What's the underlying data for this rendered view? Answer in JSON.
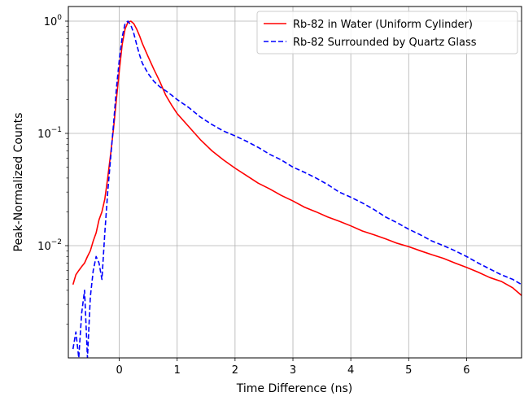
{
  "chart_data": {
    "type": "line",
    "title": "",
    "xlabel": "Time Difference (ns)",
    "ylabel": "Peak-Normalized Counts",
    "yscale": "log",
    "xlim": [
      -0.88,
      6.95
    ],
    "ylim": [
      0.001,
      1.35
    ],
    "xticks": [
      0,
      1,
      2,
      3,
      4,
      5,
      6
    ],
    "xtick_labels": [
      "0",
      "1",
      "2",
      "3",
      "4",
      "5",
      "6"
    ],
    "yticks": [
      0.01,
      0.1,
      1
    ],
    "ytick_labels": [
      {
        "base": "10",
        "exp": "−2"
      },
      {
        "base": "10",
        "exp": "−1"
      },
      {
        "base": "10",
        "exp": "0"
      }
    ],
    "grid": true,
    "legend_position": "top-right",
    "series": [
      {
        "name": "Rb-82 in Water (Uniform Cylinder)",
        "color": "#ff0000",
        "linestyle": "solid",
        "x": [
          -0.8,
          -0.75,
          -0.7,
          -0.65,
          -0.6,
          -0.55,
          -0.5,
          -0.45,
          -0.4,
          -0.35,
          -0.3,
          -0.25,
          -0.2,
          -0.15,
          -0.1,
          -0.05,
          0.0,
          0.05,
          0.1,
          0.15,
          0.2,
          0.25,
          0.3,
          0.35,
          0.4,
          0.5,
          0.6,
          0.7,
          0.8,
          0.9,
          1.0,
          1.2,
          1.4,
          1.6,
          1.8,
          2.0,
          2.2,
          2.4,
          2.6,
          2.8,
          3.0,
          3.2,
          3.4,
          3.6,
          3.8,
          4.0,
          4.2,
          4.4,
          4.6,
          4.8,
          5.0,
          5.2,
          5.4,
          5.6,
          5.8,
          6.0,
          6.2,
          6.4,
          6.6,
          6.8,
          6.95
        ],
        "y": [
          0.0045,
          0.0055,
          0.006,
          0.0065,
          0.007,
          0.008,
          0.009,
          0.011,
          0.013,
          0.017,
          0.02,
          0.026,
          0.04,
          0.065,
          0.11,
          0.2,
          0.36,
          0.62,
          0.85,
          0.98,
          1.0,
          0.95,
          0.85,
          0.74,
          0.63,
          0.48,
          0.37,
          0.29,
          0.22,
          0.18,
          0.15,
          0.115,
          0.088,
          0.07,
          0.058,
          0.049,
          0.042,
          0.036,
          0.032,
          0.028,
          0.025,
          0.022,
          0.02,
          0.018,
          0.0165,
          0.015,
          0.0135,
          0.0125,
          0.0115,
          0.0105,
          0.0098,
          0.009,
          0.0083,
          0.0077,
          0.007,
          0.0064,
          0.0058,
          0.0052,
          0.0048,
          0.0042,
          0.0036
        ]
      },
      {
        "name": "Rb-82 Surrounded by Quartz Glass",
        "color": "#0000ff",
        "linestyle": "dashed",
        "x": [
          -0.8,
          -0.75,
          -0.7,
          -0.65,
          -0.6,
          -0.55,
          -0.5,
          -0.45,
          -0.4,
          -0.35,
          -0.3,
          -0.25,
          -0.2,
          -0.15,
          -0.1,
          -0.05,
          0.0,
          0.05,
          0.1,
          0.15,
          0.2,
          0.25,
          0.3,
          0.35,
          0.4,
          0.5,
          0.6,
          0.7,
          0.8,
          0.9,
          1.0,
          1.2,
          1.4,
          1.6,
          1.8,
          2.0,
          2.2,
          2.4,
          2.6,
          2.8,
          3.0,
          3.2,
          3.4,
          3.6,
          3.8,
          4.0,
          4.2,
          4.4,
          4.6,
          4.8,
          5.0,
          5.2,
          5.4,
          5.6,
          5.8,
          6.0,
          6.2,
          6.4,
          6.6,
          6.8,
          6.95
        ],
        "y": [
          0.0012,
          0.0017,
          0.001,
          0.0025,
          0.004,
          0.001,
          0.0035,
          0.006,
          0.008,
          0.007,
          0.005,
          0.013,
          0.03,
          0.06,
          0.12,
          0.25,
          0.45,
          0.72,
          0.95,
          1.0,
          0.92,
          0.78,
          0.62,
          0.5,
          0.42,
          0.34,
          0.29,
          0.26,
          0.24,
          0.22,
          0.2,
          0.17,
          0.14,
          0.12,
          0.105,
          0.095,
          0.085,
          0.075,
          0.065,
          0.058,
          0.05,
          0.045,
          0.04,
          0.035,
          0.03,
          0.027,
          0.024,
          0.021,
          0.018,
          0.016,
          0.014,
          0.0125,
          0.011,
          0.01,
          0.009,
          0.008,
          0.007,
          0.0062,
          0.0055,
          0.005,
          0.0045
        ]
      }
    ]
  }
}
